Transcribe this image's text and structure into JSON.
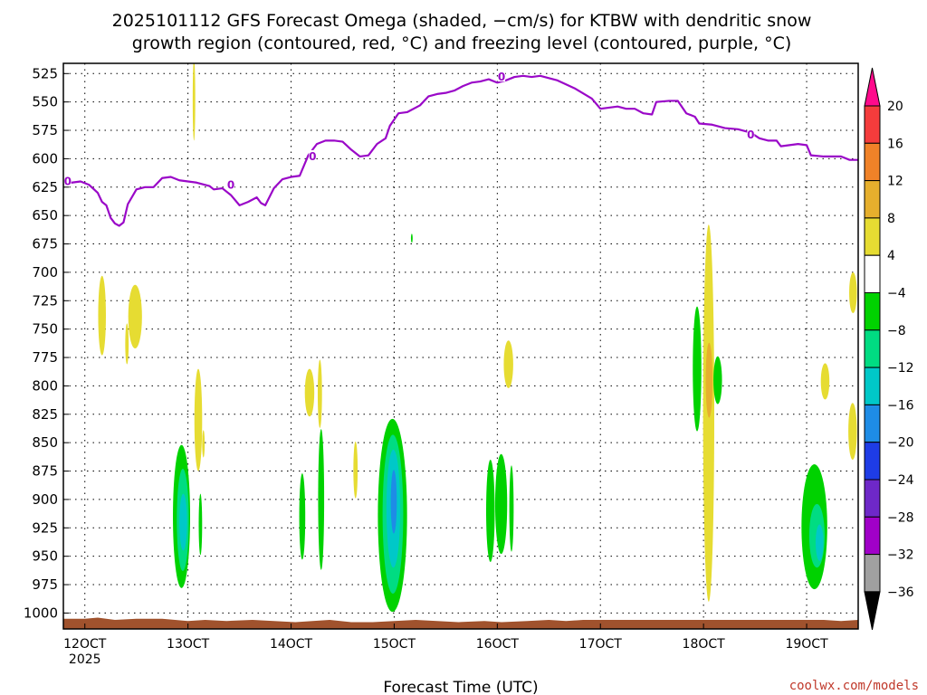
{
  "chart_data": {
    "type": "heatmap",
    "title": {
      "line1": "2025101112 GFS Forecast Omega (shaded, −cm/s) for KTBW with dendritic snow",
      "line2": "growth region (contoured, red, °C) and freezing level (contoured, purple, °C)"
    },
    "xlabel": "Forecast Time (UTC)",
    "credit": "coolwx.com/models",
    "x_unit": "hours since 2025-10-11 12Z",
    "xlim": [
      -5,
      180
    ],
    "ylim": [
      516,
      1014
    ],
    "y_ticks": [
      525,
      550,
      575,
      600,
      625,
      650,
      675,
      700,
      725,
      750,
      775,
      800,
      825,
      850,
      875,
      900,
      925,
      950,
      975,
      1000
    ],
    "x_ticks": [
      {
        "hour": 0,
        "label": "12OCT",
        "sublabel": "2025"
      },
      {
        "hour": 24,
        "label": "13OCT"
      },
      {
        "hour": 48,
        "label": "14OCT"
      },
      {
        "hour": 72,
        "label": "15OCT"
      },
      {
        "hour": 96,
        "label": "16OCT"
      },
      {
        "hour": 120,
        "label": "17OCT"
      },
      {
        "hour": 144,
        "label": "18OCT"
      },
      {
        "hour": 168,
        "label": "19OCT"
      }
    ],
    "colorbar": {
      "labels": [
        "20",
        "16",
        "12",
        "8",
        "4",
        "−4",
        "−8",
        "−12",
        "−16",
        "−20",
        "−24",
        "−28",
        "−32",
        "−36"
      ],
      "bins": [
        {
          "color": "#ff0a8c"
        },
        {
          "color": "#f53c3c"
        },
        {
          "color": "#f08228"
        },
        {
          "color": "#e6af2d"
        },
        {
          "color": "#e6dc32"
        },
        {
          "color": "#ffffff"
        },
        {
          "color": "#00d200"
        },
        {
          "color": "#00dc82"
        },
        {
          "color": "#00c8c8"
        },
        {
          "color": "#1e8ce6"
        },
        {
          "color": "#1e3ce6"
        },
        {
          "color": "#6e28c8"
        },
        {
          "color": "#a000c8"
        },
        {
          "color": "#a0a0a0"
        },
        {
          "color": "#000000"
        }
      ]
    },
    "freezing_level": {
      "label": "0",
      "color": "#9a08c8",
      "points": [
        [
          -5,
          623
        ],
        [
          -3,
          621
        ],
        [
          -1,
          620
        ],
        [
          1,
          623
        ],
        [
          3,
          630
        ],
        [
          4,
          638
        ],
        [
          5,
          641
        ],
        [
          6,
          652
        ],
        [
          7,
          657
        ],
        [
          8,
          659
        ],
        [
          9,
          656
        ],
        [
          10,
          640
        ],
        [
          12,
          627
        ],
        [
          14,
          625
        ],
        [
          16,
          625
        ],
        [
          18,
          617
        ],
        [
          20,
          616
        ],
        [
          22,
          619
        ],
        [
          26,
          621
        ],
        [
          29,
          624
        ],
        [
          30,
          627
        ],
        [
          32,
          626
        ],
        [
          34,
          632
        ],
        [
          36,
          641
        ],
        [
          38,
          638
        ],
        [
          40,
          634
        ],
        [
          41,
          639
        ],
        [
          42,
          641
        ],
        [
          44,
          626
        ],
        [
          46,
          618
        ],
        [
          48,
          616
        ],
        [
          50,
          615
        ],
        [
          52,
          597
        ],
        [
          54,
          587
        ],
        [
          56,
          584
        ],
        [
          58,
          584
        ],
        [
          60,
          585
        ],
        [
          62,
          592
        ],
        [
          64,
          598
        ],
        [
          66,
          597
        ],
        [
          68,
          587
        ],
        [
          70,
          582
        ],
        [
          71,
          571
        ],
        [
          73,
          560
        ],
        [
          75,
          559
        ],
        [
          78,
          553
        ],
        [
          80,
          545
        ],
        [
          82,
          543
        ],
        [
          84,
          542
        ],
        [
          86,
          540
        ],
        [
          88,
          536
        ],
        [
          90,
          533
        ],
        [
          92,
          532
        ],
        [
          94,
          530
        ],
        [
          96,
          533
        ],
        [
          98,
          531
        ],
        [
          100,
          528
        ],
        [
          102,
          527
        ],
        [
          104,
          528
        ],
        [
          106,
          527
        ],
        [
          110,
          531
        ],
        [
          114,
          538
        ],
        [
          118,
          547
        ],
        [
          120,
          556
        ],
        [
          124,
          554
        ],
        [
          126,
          556
        ],
        [
          128,
          556
        ],
        [
          130,
          560
        ],
        [
          132,
          561
        ],
        [
          133,
          550
        ],
        [
          136,
          549
        ],
        [
          138,
          549
        ],
        [
          140,
          560
        ],
        [
          142,
          563
        ],
        [
          143,
          569
        ],
        [
          146,
          570
        ],
        [
          149,
          573
        ],
        [
          152,
          574
        ],
        [
          155,
          577
        ],
        [
          157,
          582
        ],
        [
          159,
          584
        ],
        [
          161,
          584
        ],
        [
          162,
          589
        ],
        [
          164,
          588
        ],
        [
          166,
          587
        ],
        [
          168,
          588
        ],
        [
          169,
          597
        ],
        [
          172,
          598
        ],
        [
          176,
          598
        ],
        [
          178,
          601
        ],
        [
          180,
          601
        ]
      ],
      "label_positions": [
        [
          -4,
          620
        ],
        [
          34,
          623
        ],
        [
          53,
          598
        ],
        [
          97,
          528
        ],
        [
          155,
          579
        ]
      ]
    },
    "surface": {
      "color": "#a0522d",
      "points": [
        [
          -5,
          1005
        ],
        [
          0,
          1005
        ],
        [
          3,
          1004
        ],
        [
          7,
          1006
        ],
        [
          12,
          1005
        ],
        [
          18,
          1005
        ],
        [
          24,
          1007
        ],
        [
          28,
          1006
        ],
        [
          33,
          1007
        ],
        [
          39,
          1006
        ],
        [
          44,
          1007
        ],
        [
          49,
          1008
        ],
        [
          53,
          1007
        ],
        [
          57,
          1006
        ],
        [
          62,
          1008
        ],
        [
          67,
          1008
        ],
        [
          72,
          1007
        ],
        [
          77,
          1006
        ],
        [
          82,
          1007
        ],
        [
          87,
          1008
        ],
        [
          93,
          1007
        ],
        [
          97,
          1008
        ],
        [
          103,
          1007
        ],
        [
          108,
          1006
        ],
        [
          112,
          1007
        ],
        [
          116,
          1006
        ],
        [
          121,
          1006
        ],
        [
          127,
          1006
        ],
        [
          132,
          1006
        ],
        [
          137,
          1006
        ],
        [
          142,
          1006
        ],
        [
          147,
          1006
        ],
        [
          152,
          1006
        ],
        [
          157,
          1006
        ],
        [
          162,
          1006
        ],
        [
          167,
          1006
        ],
        [
          172,
          1006
        ],
        [
          176,
          1007
        ],
        [
          180,
          1006
        ]
      ]
    },
    "omega_regions": [
      {
        "color": "#e6dc32",
        "xc": 4.0,
        "yc": 738,
        "rx": 0.9,
        "ry": 35
      },
      {
        "color": "#e6dc32",
        "xc": 11.7,
        "yc": 739,
        "rx": 1.6,
        "ry": 28
      },
      {
        "color": "#e6dc32",
        "xc": 9.8,
        "yc": 763,
        "rx": 0.4,
        "ry": 18
      },
      {
        "color": "#e6dc32",
        "xc": 26.4,
        "yc": 830,
        "rx": 0.9,
        "ry": 45
      },
      {
        "color": "#e6dc32",
        "xc": 27.6,
        "yc": 851,
        "rx": 0.3,
        "ry": 12
      },
      {
        "color": "#e6dc32",
        "xc": 25.4,
        "yc": 548,
        "rx": 0.3,
        "ry": 36
      },
      {
        "color": "#e6dc32",
        "xc": 52.3,
        "yc": 806,
        "rx": 1.1,
        "ry": 21
      },
      {
        "color": "#e6dc32",
        "xc": 54.7,
        "yc": 807,
        "rx": 0.5,
        "ry": 30
      },
      {
        "color": "#e6dc32",
        "xc": 63.0,
        "yc": 874,
        "rx": 0.5,
        "ry": 25
      },
      {
        "color": "#e6dc32",
        "xc": 98.6,
        "yc": 781,
        "rx": 1.1,
        "ry": 21
      },
      {
        "color": "#e6dc32",
        "xc": 145.2,
        "yc": 824,
        "rx": 1.3,
        "ry": 166
      },
      {
        "color": "#e6dc32",
        "xc": 172.3,
        "yc": 796,
        "rx": 1.0,
        "ry": 16
      },
      {
        "color": "#e6dc32",
        "xc": 178.7,
        "yc": 840,
        "rx": 1.0,
        "ry": 25
      },
      {
        "color": "#e6dc32",
        "xc": 178.8,
        "yc": 718,
        "rx": 0.9,
        "ry": 18
      },
      {
        "color": "#00d200",
        "xc": 22.5,
        "yc": 915,
        "rx": 2.0,
        "ry": 63
      },
      {
        "color": "#00d200",
        "xc": 26.9,
        "yc": 922,
        "rx": 0.4,
        "ry": 27
      },
      {
        "color": "#00d200",
        "xc": 50.6,
        "yc": 915,
        "rx": 0.7,
        "ry": 38
      },
      {
        "color": "#00d200",
        "xc": 55.0,
        "yc": 900,
        "rx": 0.7,
        "ry": 62
      },
      {
        "color": "#00d200",
        "xc": 71.6,
        "yc": 914,
        "rx": 3.4,
        "ry": 85
      },
      {
        "color": "#00d200",
        "xc": 94.4,
        "yc": 910,
        "rx": 1.0,
        "ry": 45
      },
      {
        "color": "#00d200",
        "xc": 96.9,
        "yc": 904,
        "rx": 1.4,
        "ry": 44
      },
      {
        "color": "#00d200",
        "xc": 99.3,
        "yc": 908,
        "rx": 0.5,
        "ry": 38
      },
      {
        "color": "#00d200",
        "xc": 142.5,
        "yc": 785,
        "rx": 1.0,
        "ry": 55
      },
      {
        "color": "#00d200",
        "xc": 147.3,
        "yc": 795,
        "rx": 1.0,
        "ry": 21
      },
      {
        "color": "#00d200",
        "xc": 169.8,
        "yc": 924,
        "rx": 3.0,
        "ry": 55
      },
      {
        "color": "#00d200",
        "xc": 76.1,
        "yc": 670,
        "rx": 0.2,
        "ry": 4
      },
      {
        "color": "#00dc82",
        "xc": 22.8,
        "yc": 918,
        "rx": 1.4,
        "ry": 45
      },
      {
        "color": "#00dc82",
        "xc": 71.7,
        "yc": 913,
        "rx": 2.4,
        "ry": 70
      },
      {
        "color": "#00dc82",
        "xc": 170.4,
        "yc": 932,
        "rx": 1.8,
        "ry": 28
      },
      {
        "color": "#00c8c8",
        "xc": 22.9,
        "yc": 920,
        "rx": 0.9,
        "ry": 25
      },
      {
        "color": "#00c8c8",
        "xc": 71.8,
        "yc": 908,
        "rx": 1.6,
        "ry": 52
      },
      {
        "color": "#00c8c8",
        "xc": 171.0,
        "yc": 938,
        "rx": 0.9,
        "ry": 16
      },
      {
        "color": "#1e8ce6",
        "xc": 71.9,
        "yc": 902,
        "rx": 0.7,
        "ry": 28
      },
      {
        "color": "#e6af2d",
        "xc": 145.3,
        "yc": 795,
        "rx": 0.8,
        "ry": 33
      }
    ]
  }
}
